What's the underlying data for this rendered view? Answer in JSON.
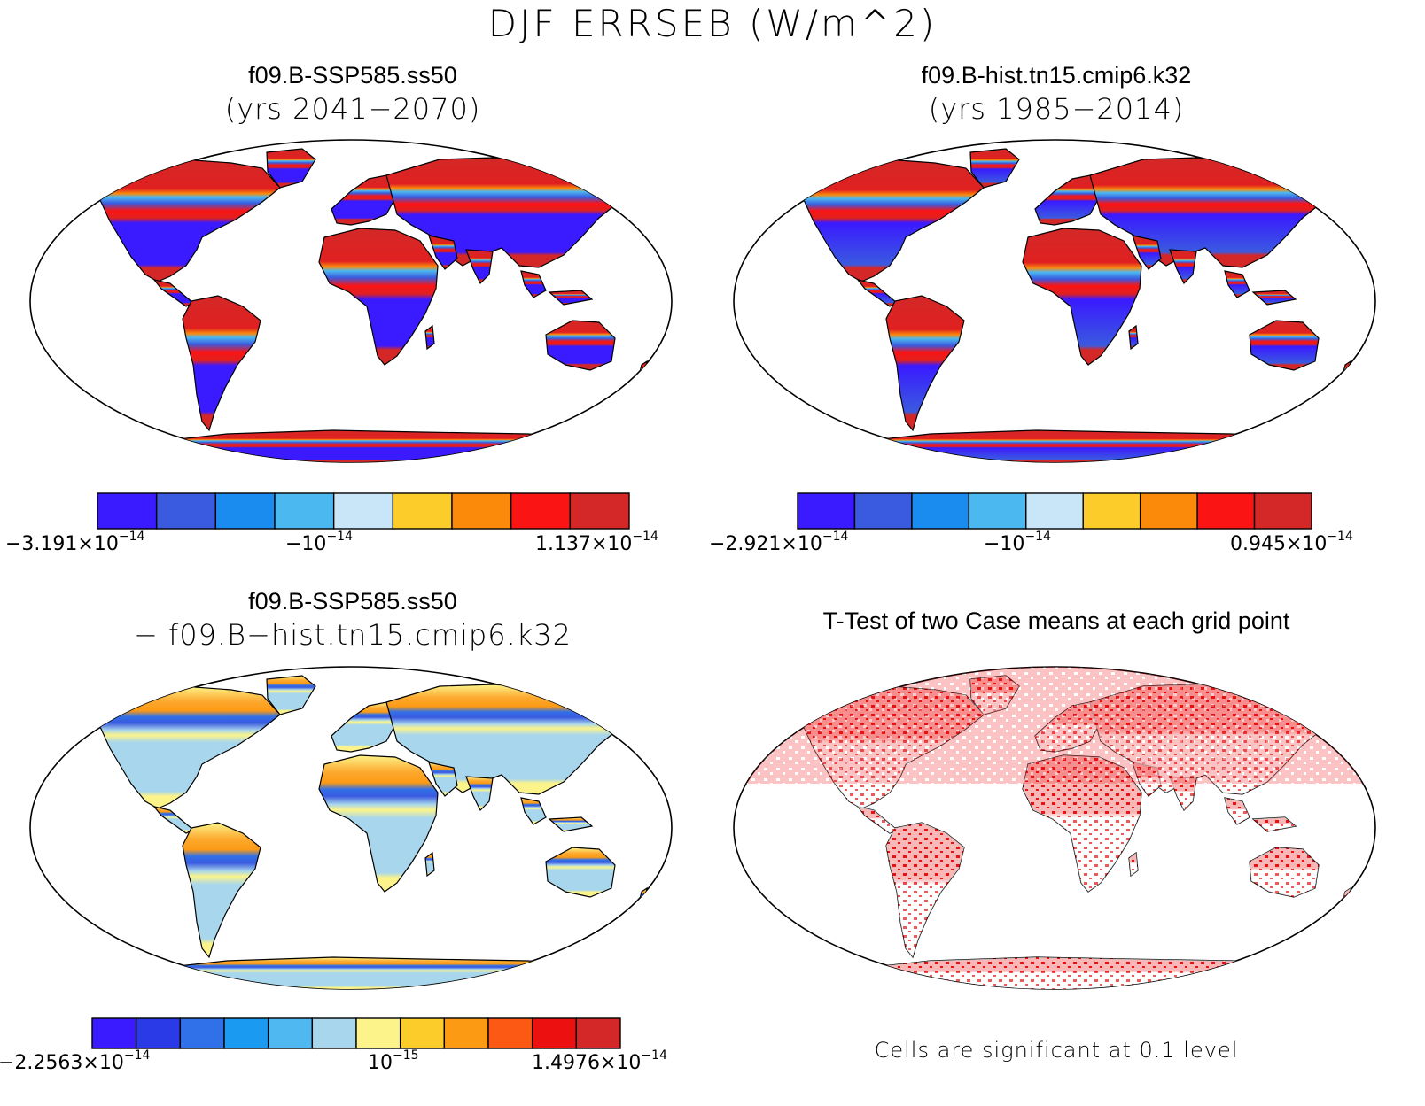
{
  "main_title": "DJF ERRSEB (W/m^2)",
  "panels": [
    {
      "id": "tl",
      "title": "f09.B-SSP585.ss50",
      "subtitle": "(yrs 2041−2070)",
      "colorbar": {
        "colors": [
          "#3a1aff",
          "#3a5ae0",
          "#1a8cf0",
          "#4cb8f0",
          "#c8e6f8",
          "#fccc2a",
          "#fc8a0a",
          "#fa1414",
          "#d42828"
        ],
        "labels": [
          {
            "base": "−3.191×10",
            "exp": "−14"
          },
          {
            "base": "−10",
            "exp": "−14"
          },
          {
            "base": "1.137×10",
            "exp": "−14"
          }
        ]
      }
    },
    {
      "id": "tr",
      "title": "f09.B-hist.tn15.cmip6.k32",
      "subtitle": "(yrs 1985−2014)",
      "colorbar": {
        "colors": [
          "#3a1aff",
          "#3a5ae0",
          "#1a8cf0",
          "#4cb8f0",
          "#c8e6f8",
          "#fccc2a",
          "#fc8a0a",
          "#fa1414",
          "#d42828"
        ],
        "labels": [
          {
            "base": "−2.921×10",
            "exp": "−14"
          },
          {
            "base": "−10",
            "exp": "−14"
          },
          {
            "base": "0.945×10",
            "exp": "−14"
          }
        ]
      }
    },
    {
      "id": "bl",
      "title": "f09.B-SSP585.ss50",
      "subtitle": "− f09.B−hist.tn15.cmip6.k32",
      "colorbar": {
        "colors": [
          "#3a1aff",
          "#2a3ae6",
          "#3070e8",
          "#1a9af0",
          "#50b8f0",
          "#a8d6ec",
          "#fcf48a",
          "#fccc2a",
          "#fc9a14",
          "#fc5a14",
          "#ec1010",
          "#d42828"
        ],
        "labels": [
          {
            "base": "−2.2563×10",
            "exp": "−14"
          },
          {
            "base": "10",
            "exp": "−15"
          },
          {
            "base": "1.4976×10",
            "exp": "−14"
          }
        ]
      }
    },
    {
      "id": "br",
      "title": "T-Test of two Case means at each grid point",
      "note": "Cells are significant at 0.1 level"
    }
  ],
  "icons": {
    "map": "world-map-robinson-icon"
  },
  "colors": {
    "land_warm": "#d42828",
    "land_cool": "#3a1aff",
    "land_diff": "#a8d6ec",
    "significant": "#ee1010"
  }
}
